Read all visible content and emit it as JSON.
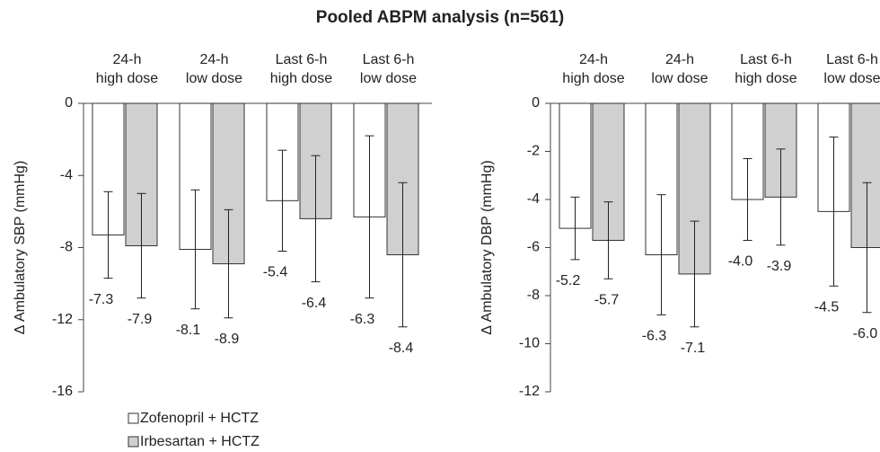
{
  "title": "Pooled ABPM analysis (n=561)",
  "chart_data": [
    {
      "type": "bar",
      "ylabel": "Δ Ambulatory SBP (mmHg)",
      "categories": [
        [
          "24-h",
          "high dose"
        ],
        [
          "24-h",
          "low dose"
        ],
        [
          "Last 6-h",
          "high dose"
        ],
        [
          "Last 6-h",
          "low dose"
        ]
      ],
      "ylim": [
        -16,
        0
      ],
      "yticks": [
        0,
        -4,
        -8,
        -12,
        -16
      ],
      "series": [
        {
          "name": "Zofenopril + HCTZ",
          "color": "#ffffff",
          "values": [
            -7.3,
            -8.1,
            -5.4,
            -6.3
          ],
          "value_labels": [
            "-7.3",
            "-8.1",
            "-5.4",
            "-6.3"
          ],
          "errors": [
            2.4,
            3.3,
            2.8,
            4.5
          ]
        },
        {
          "name": "Irbesartan + HCTZ",
          "color": "#d0d0d0",
          "values": [
            -7.9,
            -8.9,
            -6.4,
            -8.4
          ],
          "value_labels": [
            "-7.9",
            "-8.9",
            "-6.4",
            "-8.4"
          ],
          "errors": [
            2.9,
            3.0,
            3.5,
            4.0
          ]
        }
      ]
    },
    {
      "type": "bar",
      "ylabel": "Δ Ambulatory DBP (mmHg)",
      "categories": [
        [
          "24-h",
          "high dose"
        ],
        [
          "24-h",
          "low dose"
        ],
        [
          "Last 6-h",
          "high dose"
        ],
        [
          "Last 6-h",
          "low dose"
        ]
      ],
      "ylim": [
        -12,
        0
      ],
      "yticks": [
        0,
        -2,
        -4,
        -6,
        -8,
        -10,
        -12
      ],
      "series": [
        {
          "color": "#ffffff",
          "values": [
            -5.2,
            -6.3,
            -4.0,
            -4.5
          ],
          "value_labels": [
            "-5.2",
            "-6.3",
            "-4.0",
            "-4.5"
          ],
          "errors": [
            1.3,
            2.5,
            1.7,
            3.1
          ]
        },
        {
          "color": "#d0d0d0",
          "values": [
            -5.7,
            -7.1,
            -3.9,
            -6.0
          ],
          "value_labels": [
            "-5.7",
            "-7.1",
            "-3.9",
            "-6.0"
          ],
          "errors": [
            1.6,
            2.2,
            2.0,
            2.7
          ]
        }
      ]
    }
  ]
}
